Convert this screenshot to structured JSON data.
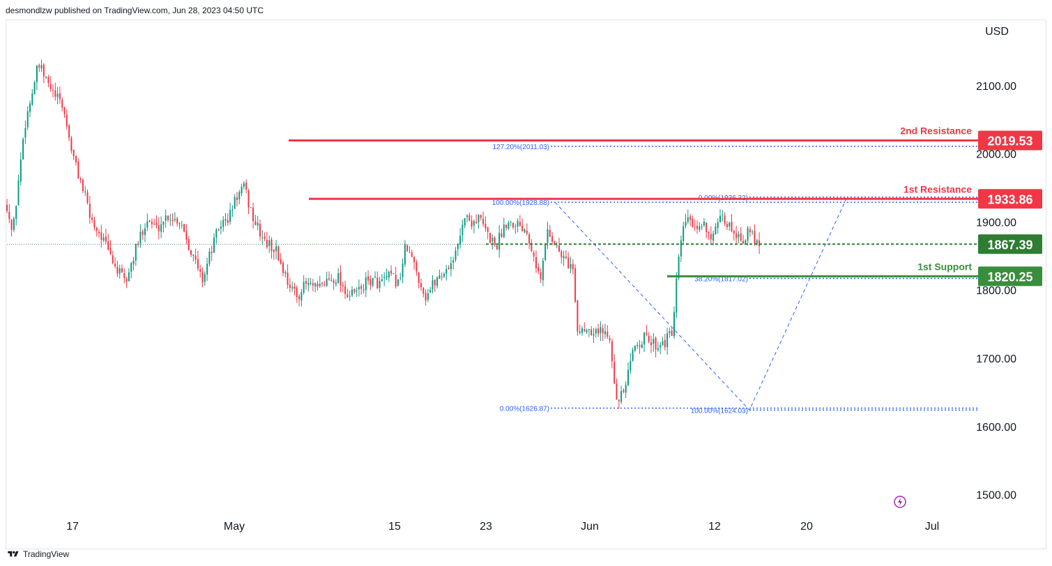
{
  "header": {
    "publisher": "desmondlzw published on TradingView.com, Jun 28, 2023 04:50 UTC"
  },
  "footer": {
    "brand": "TradingView",
    "logo_icon": "tradingview-logo-icon"
  },
  "colors": {
    "up": "#089981",
    "down": "#f23645",
    "resistance": "#f23645",
    "support": "#388e3c",
    "fib": "#2962ff",
    "last_price": "#2e7d32"
  },
  "chart_data": {
    "type": "candlestick",
    "currency": "USD",
    "y_axis_ticks": [
      "2100.00",
      "2000.00",
      "1900.00",
      "1800.00",
      "1700.00",
      "1600.00",
      "1500.00"
    ],
    "ylim": [
      1470,
      2165
    ],
    "x_axis_ticks": [
      "17",
      "May",
      "15",
      "23",
      "Jun",
      "12",
      "20",
      "Jul"
    ],
    "key_prices": [
      {
        "t": 0,
        "p": 1925
      },
      {
        "t": 8,
        "p": 1880
      },
      {
        "t": 25,
        "p": 2040
      },
      {
        "t": 45,
        "p": 2130
      },
      {
        "t": 65,
        "p": 2090
      },
      {
        "t": 80,
        "p": 2070
      },
      {
        "t": 95,
        "p": 1995
      },
      {
        "t": 110,
        "p": 1945
      },
      {
        "t": 120,
        "p": 1905
      },
      {
        "t": 135,
        "p": 1880
      },
      {
        "t": 155,
        "p": 1835
      },
      {
        "t": 170,
        "p": 1810
      },
      {
        "t": 185,
        "p": 1860
      },
      {
        "t": 200,
        "p": 1905
      },
      {
        "t": 215,
        "p": 1890
      },
      {
        "t": 230,
        "p": 1910
      },
      {
        "t": 250,
        "p": 1900
      },
      {
        "t": 265,
        "p": 1855
      },
      {
        "t": 280,
        "p": 1815
      },
      {
        "t": 295,
        "p": 1865
      },
      {
        "t": 305,
        "p": 1895
      },
      {
        "t": 318,
        "p": 1905
      },
      {
        "t": 328,
        "p": 1935
      },
      {
        "t": 340,
        "p": 1950
      },
      {
        "t": 355,
        "p": 1900
      },
      {
        "t": 370,
        "p": 1870
      },
      {
        "t": 385,
        "p": 1860
      },
      {
        "t": 400,
        "p": 1820
      },
      {
        "t": 415,
        "p": 1790
      },
      {
        "t": 430,
        "p": 1810
      },
      {
        "t": 445,
        "p": 1800
      },
      {
        "t": 460,
        "p": 1815
      },
      {
        "t": 475,
        "p": 1820
      },
      {
        "t": 490,
        "p": 1790
      },
      {
        "t": 505,
        "p": 1800
      },
      {
        "t": 520,
        "p": 1815
      },
      {
        "t": 535,
        "p": 1810
      },
      {
        "t": 550,
        "p": 1820
      },
      {
        "t": 562,
        "p": 1810
      },
      {
        "t": 572,
        "p": 1865
      },
      {
        "t": 585,
        "p": 1835
      },
      {
        "t": 600,
        "p": 1790
      },
      {
        "t": 615,
        "p": 1815
      },
      {
        "t": 630,
        "p": 1830
      },
      {
        "t": 645,
        "p": 1855
      },
      {
        "t": 655,
        "p": 1910
      },
      {
        "t": 665,
        "p": 1900
      },
      {
        "t": 678,
        "p": 1905
      },
      {
        "t": 690,
        "p": 1880
      },
      {
        "t": 702,
        "p": 1865
      },
      {
        "t": 715,
        "p": 1900
      },
      {
        "t": 730,
        "p": 1900
      },
      {
        "t": 745,
        "p": 1890
      },
      {
        "t": 757,
        "p": 1850
      },
      {
        "t": 765,
        "p": 1810
      },
      {
        "t": 775,
        "p": 1890
      },
      {
        "t": 785,
        "p": 1870
      },
      {
        "t": 795,
        "p": 1850
      },
      {
        "t": 805,
        "p": 1840
      },
      {
        "t": 812,
        "p": 1830
      },
      {
        "t": 817,
        "p": 1740
      },
      {
        "t": 830,
        "p": 1745
      },
      {
        "t": 850,
        "p": 1740
      },
      {
        "t": 865,
        "p": 1735
      },
      {
        "t": 875,
        "p": 1630
      },
      {
        "t": 888,
        "p": 1660
      },
      {
        "t": 900,
        "p": 1720
      },
      {
        "t": 915,
        "p": 1730
      },
      {
        "t": 930,
        "p": 1720
      },
      {
        "t": 945,
        "p": 1725
      },
      {
        "t": 955,
        "p": 1740
      },
      {
        "t": 962,
        "p": 1830
      },
      {
        "t": 968,
        "p": 1880
      },
      {
        "t": 978,
        "p": 1910
      },
      {
        "t": 988,
        "p": 1880
      },
      {
        "t": 1000,
        "p": 1900
      },
      {
        "t": 1012,
        "p": 1875
      },
      {
        "t": 1025,
        "p": 1905
      },
      {
        "t": 1040,
        "p": 1890
      },
      {
        "t": 1055,
        "p": 1875
      },
      {
        "t": 1065,
        "p": 1885
      },
      {
        "t": 1080,
        "p": 1867.39
      }
    ],
    "horizontal_levels": [
      {
        "name": "2nd Resistance",
        "price": 2019.53,
        "label": "2019.53",
        "color": "#f23645"
      },
      {
        "name": "1st Resistance",
        "price": 1933.86,
        "label": "1933.86",
        "color": "#f23645"
      },
      {
        "name": "1st Support",
        "price": 1820.25,
        "label": "1820.25",
        "color": "#388e3c"
      }
    ],
    "last_price": {
      "price": 1867.39,
      "label": "1867.39"
    },
    "fib_labels": [
      {
        "text": "127.20%(2011.03)",
        "price": 2011.03
      },
      {
        "text": "100.00%(1928.88)",
        "price": 1928.88
      },
      {
        "text": "0.00%(1626.87)",
        "price": 1626.87
      },
      {
        "text": "0.00%(1936.32)",
        "price": 1936.32
      },
      {
        "text": "38.20%(1817.02)",
        "price": 1817.02
      },
      {
        "text": "100.00%(1624.03)",
        "price": 1624.03
      }
    ]
  }
}
